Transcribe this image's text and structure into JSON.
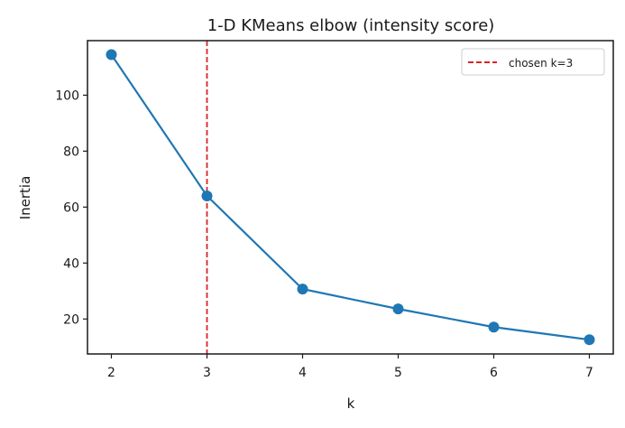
{
  "chart_data": {
    "type": "line",
    "title": "1-D KMeans elbow (intensity score)",
    "xlabel": "k",
    "ylabel": "Inertia",
    "x": [
      2,
      3,
      4,
      5,
      6,
      7
    ],
    "series": [
      {
        "name": "Inertia",
        "values": [
          114.5,
          64.0,
          30.7,
          23.6,
          17.1,
          12.6
        ],
        "color": "#1f77b4",
        "marker": "circle"
      }
    ],
    "annotations": [
      {
        "type": "vline",
        "x": 3,
        "style": "dashed",
        "color": "#d62728",
        "label": "chosen k=3"
      }
    ],
    "xticks": [
      2,
      3,
      4,
      5,
      6,
      7
    ],
    "yticks": [
      20,
      40,
      60,
      80,
      100
    ],
    "xlim": [
      1.75,
      7.25
    ],
    "ylim": [
      7.5,
      119.5
    ],
    "grid": false,
    "legend": {
      "position": "upper right",
      "entries": [
        "chosen k=3"
      ]
    }
  },
  "labels": {
    "title": "1-D KMeans elbow (intensity score)",
    "xlabel": "k",
    "ylabel": "Inertia",
    "legend_entry": "chosen k=3"
  }
}
